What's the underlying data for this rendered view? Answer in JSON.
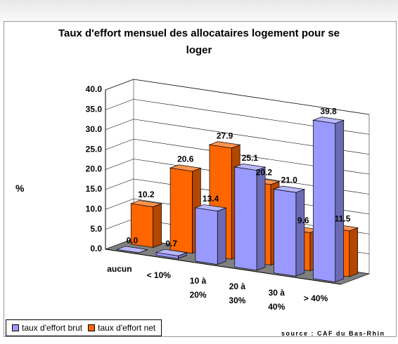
{
  "chart_data": {
    "type": "bar3d",
    "title": "Taux d'effort mensuel des allocataires logement pour se loger",
    "ylabel": "%",
    "source": "source : CAF du Bas-Rhin",
    "categories": [
      "aucun",
      "< 10%",
      "10 à 20%",
      "20 à 30%",
      "30 à 40%",
      "> 40%"
    ],
    "series": [
      {
        "name": "taux d'effort brut",
        "color": "#9999ff",
        "values": [
          0,
          0.7,
          13.4,
          25.1,
          21,
          39.8
        ],
        "value_labels": [
          "0.0",
          "0.7",
          "13.4",
          "25.1",
          "21.0",
          "39.8"
        ]
      },
      {
        "name": "taux d'effort net",
        "color": "#ff6600",
        "values": [
          10.2,
          20.6,
          27.9,
          20.2,
          9.6,
          11.5
        ],
        "value_labels": [
          "10.2",
          "20.6",
          "27.9",
          "20.2",
          "9.6",
          "11.5"
        ]
      }
    ],
    "ylim": [
      0,
      40
    ],
    "yticks": [
      {
        "value": 0,
        "label": "0.0"
      },
      {
        "value": 5,
        "label": "5.0"
      },
      {
        "value": 10,
        "label": "10.0"
      },
      {
        "value": 15,
        "label": "15.0"
      },
      {
        "value": 20,
        "label": "20.0"
      },
      {
        "value": 25,
        "label": "25.0"
      },
      {
        "value": 30,
        "label": "30.0"
      },
      {
        "value": 35,
        "label": "35.0"
      },
      {
        "value": 40,
        "label": "40.0"
      }
    ],
    "grid": true,
    "legend": "bottom"
  }
}
